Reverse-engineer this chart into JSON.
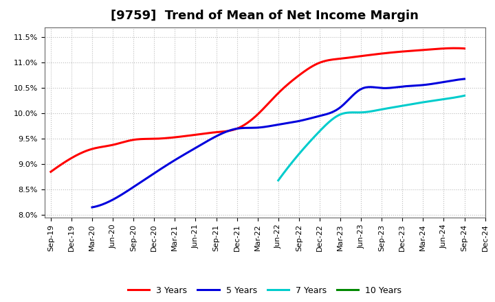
{
  "title": "[9759]  Trend of Mean of Net Income Margin",
  "background_color": "#ffffff",
  "grid_color": "#aaaaaa",
  "series": {
    "3 Years": {
      "color": "#ff0000",
      "x_indices": [
        0,
        1,
        2,
        3,
        4,
        5,
        6,
        7,
        8,
        9,
        10,
        11,
        12,
        13,
        14,
        15,
        16,
        17,
        18,
        19,
        20
      ],
      "data": [
        0.0885,
        0.0912,
        0.093,
        0.094,
        0.095,
        0.0952,
        0.0955,
        0.096,
        0.0965,
        0.0972,
        0.0998,
        0.104,
        0.1075,
        0.11,
        0.1108,
        0.1115,
        0.112,
        0.1125,
        0.113,
        0.115,
        0.1128
      ]
    },
    "5 Years": {
      "color": "#0000dd",
      "x_indices": [
        2,
        3,
        4,
        5,
        6,
        7,
        8,
        9,
        10,
        11,
        12,
        13,
        14,
        15,
        16,
        17,
        18,
        19,
        20
      ],
      "data": [
        0.0815,
        0.083,
        0.0855,
        0.088,
        0.0905,
        0.093,
        0.0955,
        0.097,
        0.0972,
        0.0978,
        0.0985,
        0.0995,
        0.101,
        0.1048,
        0.105,
        0.1053,
        0.1056,
        0.1062,
        0.1068
      ]
    },
    "7 Years": {
      "color": "#00cccc",
      "x_indices": [
        11,
        12,
        13,
        14,
        15,
        16,
        17,
        18,
        19,
        20
      ],
      "data": [
        0.0868,
        0.092,
        0.0965,
        0.0998,
        0.1002,
        0.1008,
        0.1015,
        0.1022,
        0.1028,
        0.1035
      ]
    },
    "10 Years": {
      "color": "#008800",
      "x_indices": [],
      "data": []
    }
  },
  "x_labels": [
    "Sep-19",
    "Dec-19",
    "Mar-20",
    "Jun-20",
    "Sep-20",
    "Dec-20",
    "Mar-21",
    "Jun-21",
    "Sep-21",
    "Dec-21",
    "Mar-22",
    "Jun-22",
    "Sep-22",
    "Dec-22",
    "Mar-23",
    "Jun-23",
    "Sep-23",
    "Dec-23",
    "Mar-24",
    "Jun-24",
    "Sep-24",
    "Dec-24"
  ],
  "ylim_min": 0.0795,
  "ylim_max": 0.117,
  "yticks": [
    0.08,
    0.085,
    0.09,
    0.095,
    0.1,
    0.105,
    0.11,
    0.115
  ],
  "title_fontsize": 13,
  "tick_fontsize": 8,
  "legend_fontsize": 9
}
